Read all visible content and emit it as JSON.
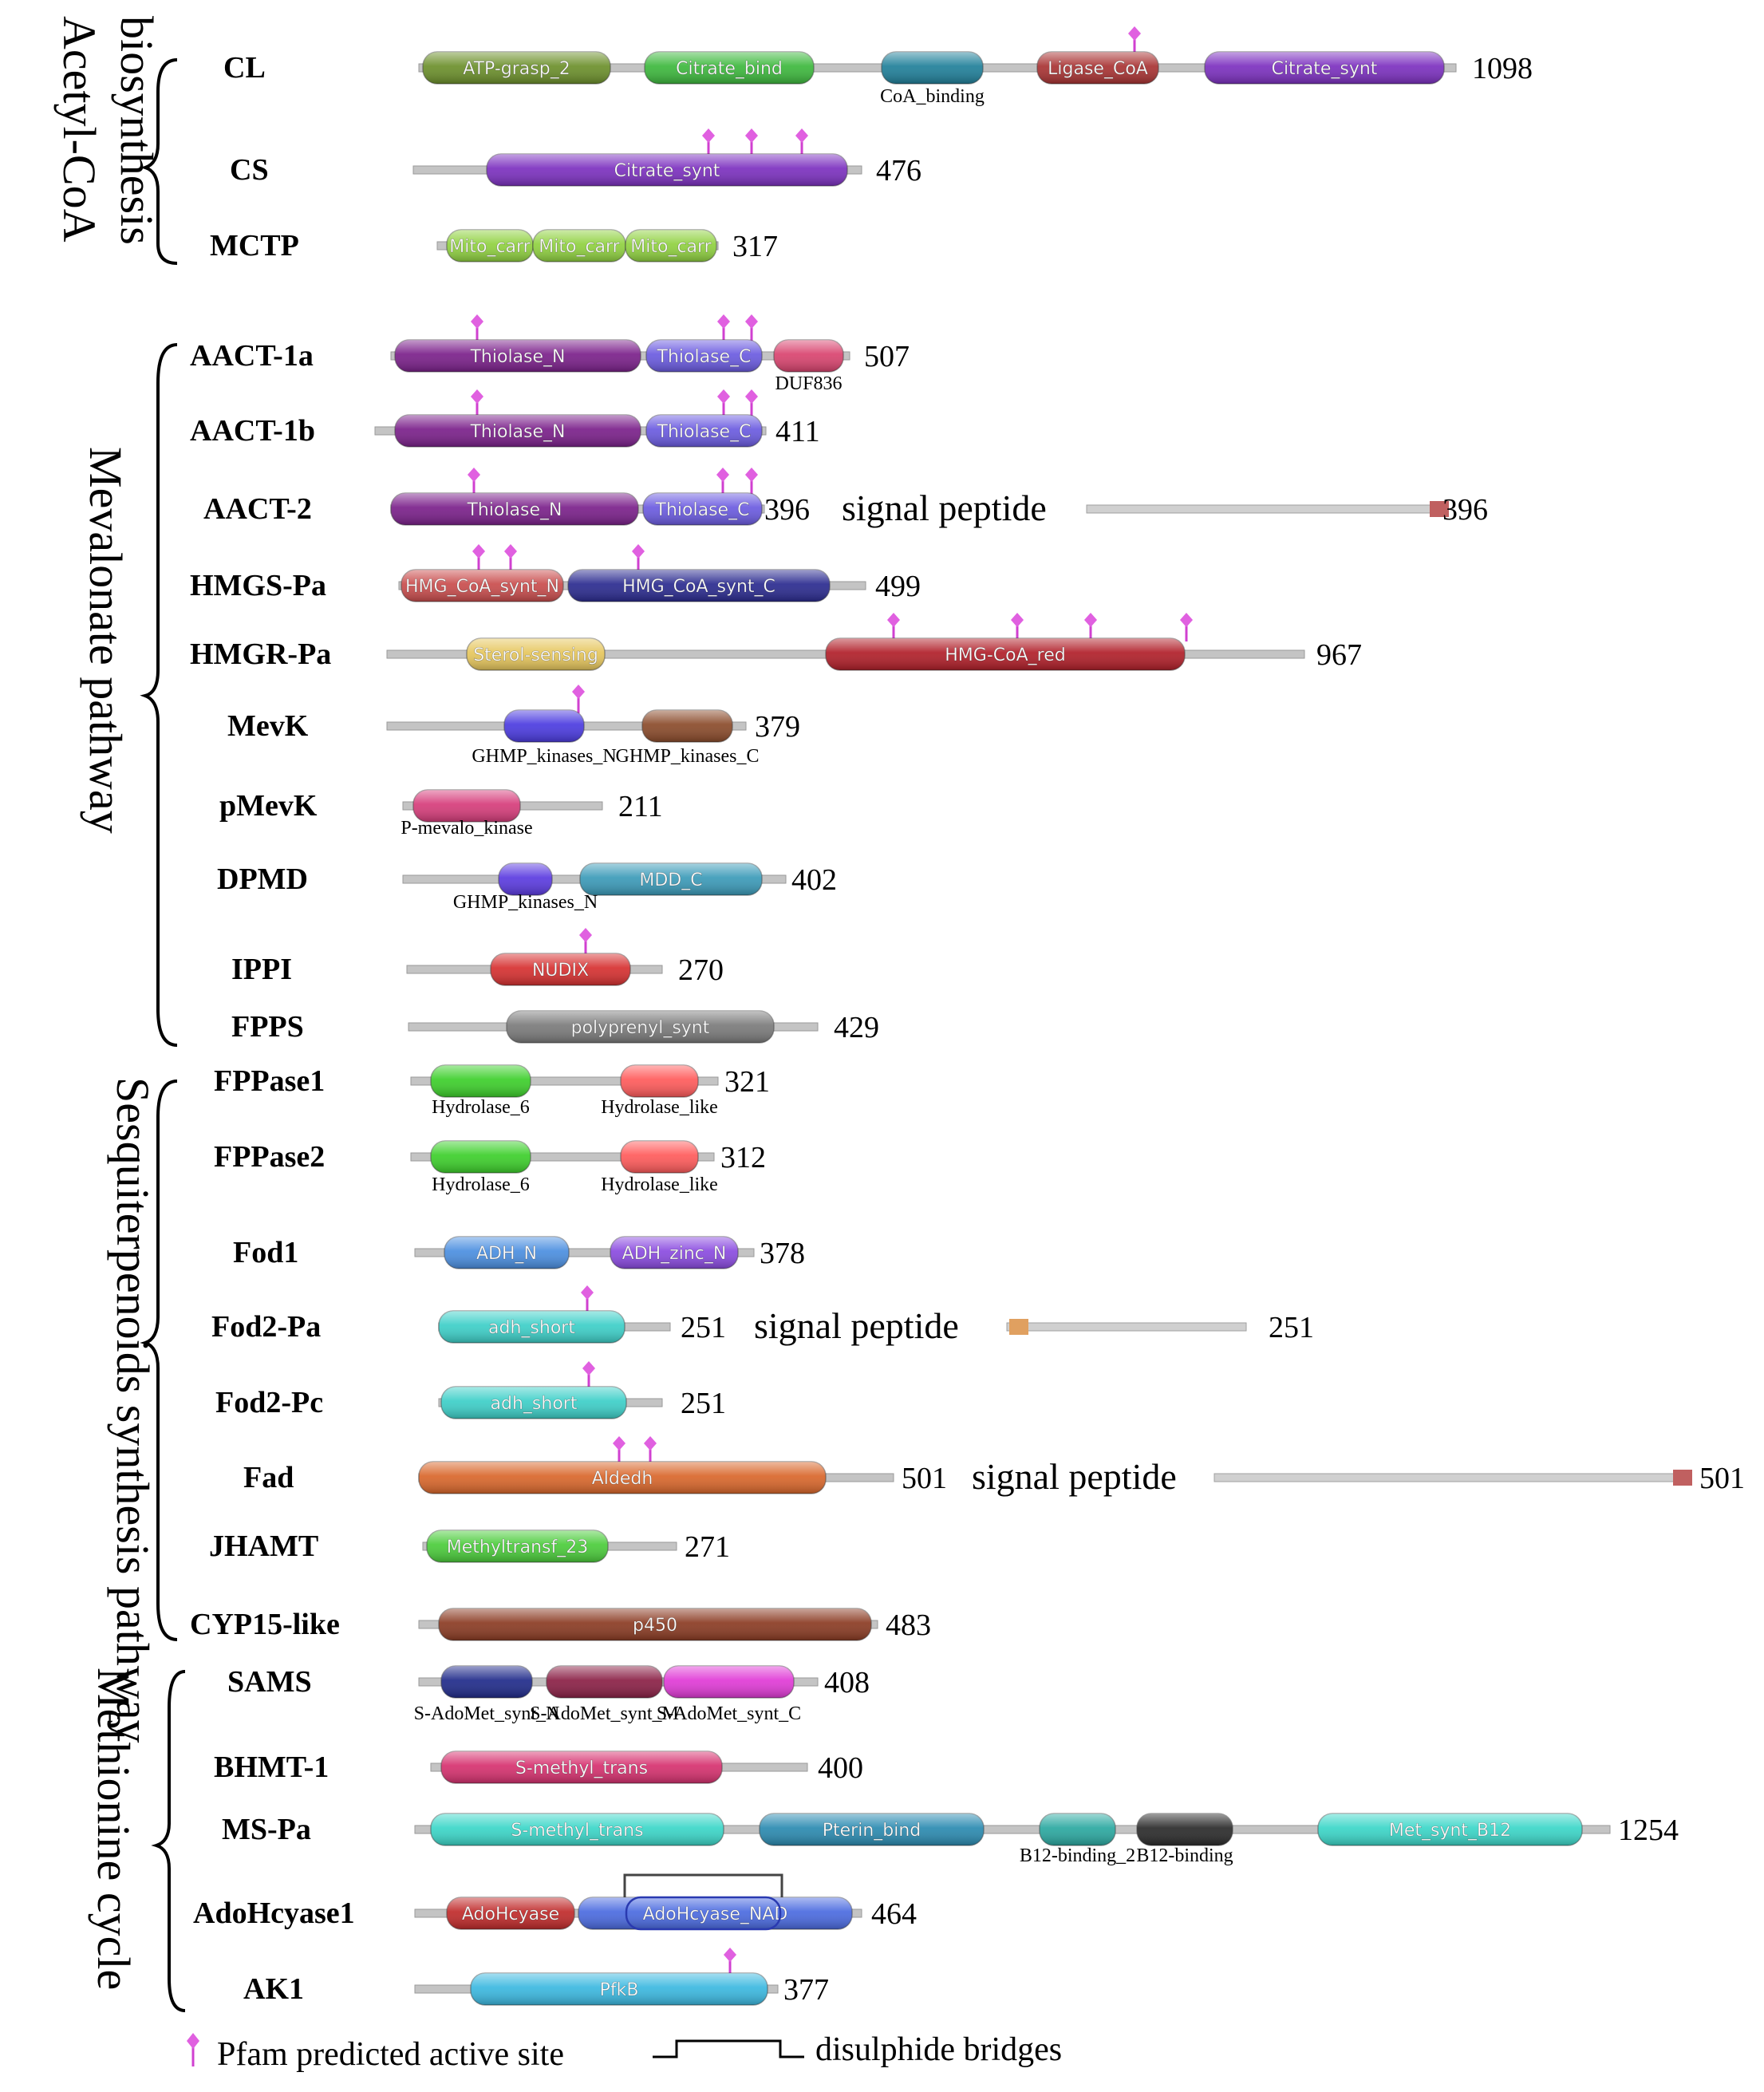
{
  "groups": [
    {
      "label": "Acetyl-CoA biosynthesis"
    },
    {
      "label": "Mevalonate pathway"
    },
    {
      "label": "Sesquiterpenoids synthesis pathway"
    },
    {
      "label": "Methionine cycle"
    }
  ],
  "legend": {
    "active_site": "Pfam predicted active site",
    "disulphide": "disulphide bridges"
  },
  "signal_peptide_label": "signal peptide",
  "proteins": [
    {
      "name": "CL",
      "length": "1098",
      "domains": [
        {
          "name": "ATP-grasp_2",
          "color": "#6b8f2a",
          "label_inside": true
        },
        {
          "name": "Citrate_bind",
          "color": "#3cb83c",
          "label_inside": true
        },
        {
          "name": "CoA_binding",
          "color": "#1f7f99",
          "label_inside": false
        },
        {
          "name": "Ligase_CoA",
          "color": "#a83232",
          "label_inside": true
        },
        {
          "name": "Citrate_synt",
          "color": "#7b2fbf",
          "label_inside": true
        }
      ],
      "active_sites": 1
    },
    {
      "name": "CS",
      "length": "476",
      "domains": [
        {
          "name": "Citrate_synt",
          "color": "#7b2fbf",
          "label_inside": true
        }
      ],
      "active_sites": 3
    },
    {
      "name": "MCTP",
      "length": "317",
      "domains": [
        {
          "name": "Mito_carr",
          "color": "#8fd13f",
          "label_inside": true
        },
        {
          "name": "Mito_carr",
          "color": "#8fd13f",
          "label_inside": true
        },
        {
          "name": "Mito_carr",
          "color": "#8fd13f",
          "label_inside": true
        }
      ],
      "active_sites": 0
    },
    {
      "name": "AACT-1a",
      "length": "507",
      "domains": [
        {
          "name": "Thiolase_N",
          "color": "#7a1f8a",
          "label_inside": true
        },
        {
          "name": "Thiolase_C",
          "color": "#6a5ae0",
          "label_inside": true
        },
        {
          "name": "DUF836",
          "color": "#d9436e",
          "label_inside": false
        }
      ],
      "active_sites": 3
    },
    {
      "name": "AACT-1b",
      "length": "411",
      "domains": [
        {
          "name": "Thiolase_N",
          "color": "#7a1f8a",
          "label_inside": true
        },
        {
          "name": "Thiolase_C",
          "color": "#6a5ae0",
          "label_inside": true
        }
      ],
      "active_sites": 3
    },
    {
      "name": "AACT-2",
      "length": "396",
      "domains": [
        {
          "name": "Thiolase_N",
          "color": "#7a1f8a",
          "label_inside": true
        },
        {
          "name": "Thiolase_C",
          "color": "#6a5ae0",
          "label_inside": true
        }
      ],
      "active_sites": 3,
      "signal_length": "396",
      "signal_color": "#c06060"
    },
    {
      "name": "HMGS-Pa",
      "length": "499",
      "domains": [
        {
          "name": "HMG_CoA_synt_N",
          "color": "#c94c4c",
          "label_inside": true
        },
        {
          "name": "HMG_CoA_synt_C",
          "color": "#2a2a8f",
          "label_inside": true
        }
      ],
      "active_sites": 3
    },
    {
      "name": "HMGR-Pa",
      "length": "967",
      "domains": [
        {
          "name": "Sterol-sensing",
          "color": "#e6c65c",
          "label_inside": true
        },
        {
          "name": "HMG-CoA_red",
          "color": "#b01e28",
          "label_inside": true
        }
      ],
      "active_sites": 4
    },
    {
      "name": "MevK",
      "length": "379",
      "domains": [
        {
          "name": "GHMP_kinases_N",
          "color": "#4a3ae0",
          "label_inside": false
        },
        {
          "name": "GHMP_kinases_C",
          "color": "#8a4a2a",
          "label_inside": false
        }
      ],
      "active_sites": 1
    },
    {
      "name": "pMevK",
      "length": "211",
      "domains": [
        {
          "name": "P-mevalo_kinase",
          "color": "#d63c7a",
          "label_inside": false
        }
      ],
      "active_sites": 0
    },
    {
      "name": "DPMD",
      "length": "402",
      "domains": [
        {
          "name": "GHMP_kinases_N",
          "color": "#5a3ae0",
          "label_inside": false
        },
        {
          "name": "MDD_C",
          "color": "#3a9ab8",
          "label_inside": true
        }
      ],
      "active_sites": 0
    },
    {
      "name": "IPPI",
      "length": "270",
      "domains": [
        {
          "name": "NUDIX",
          "color": "#d62f2f",
          "label_inside": true
        }
      ],
      "active_sites": 1
    },
    {
      "name": "FPPS",
      "length": "429",
      "domains": [
        {
          "name": "polyprenyl_synt",
          "color": "#7a7a7a",
          "label_inside": true
        }
      ],
      "active_sites": 0
    },
    {
      "name": "FPPase1",
      "length": "321",
      "domains": [
        {
          "name": "Hydrolase_6",
          "color": "#3ccf2a",
          "label_inside": false
        },
        {
          "name": "Hydrolase_like",
          "color": "#ff5a5a",
          "label_inside": false
        }
      ],
      "active_sites": 0
    },
    {
      "name": "FPPase2",
      "length": "312",
      "domains": [
        {
          "name": "Hydrolase_6",
          "color": "#3ccf2a",
          "label_inside": false
        },
        {
          "name": "Hydrolase_like",
          "color": "#ff5a5a",
          "label_inside": false
        }
      ],
      "active_sites": 0
    },
    {
      "name": "Fod1",
      "length": "378",
      "domains": [
        {
          "name": "ADH_N",
          "color": "#4a8ee0",
          "label_inside": true
        },
        {
          "name": "ADH_zinc_N",
          "color": "#8a4ae0",
          "label_inside": true
        }
      ],
      "active_sites": 0
    },
    {
      "name": "Fod2-Pa",
      "length": "251",
      "domains": [
        {
          "name": "adh_short",
          "color": "#3ccfc8",
          "label_inside": true
        }
      ],
      "active_sites": 1,
      "signal_length": "251",
      "signal_color": "#e0a060"
    },
    {
      "name": "Fod2-Pc",
      "length": "251",
      "domains": [
        {
          "name": "adh_short",
          "color": "#3ccfc8",
          "label_inside": true
        }
      ],
      "active_sites": 1
    },
    {
      "name": "Fad",
      "length": "501",
      "domains": [
        {
          "name": "Aldedh",
          "color": "#d9662a",
          "label_inside": true
        }
      ],
      "active_sites": 2,
      "signal_length": "501",
      "signal_color": "#c06060"
    },
    {
      "name": "JHAMT",
      "length": "271",
      "domains": [
        {
          "name": "Methyltransf_23",
          "color": "#4acc3a",
          "label_inside": true
        }
      ],
      "active_sites": 0
    },
    {
      "name": "CYP15-like",
      "length": "483",
      "domains": [
        {
          "name": "p450",
          "color": "#8a3a22",
          "label_inside": true
        }
      ],
      "active_sites": 0
    },
    {
      "name": "SAMS",
      "length": "408",
      "domains": [
        {
          "name": "S-AdoMet_synt_N",
          "color": "#1f2a8a",
          "label_inside": false
        },
        {
          "name": "S-AdoMet_synt_M",
          "color": "#8a1f45",
          "label_inside": false
        },
        {
          "name": "S-AdoMet_synt_C",
          "color": "#e03ad6",
          "label_inside": false
        }
      ],
      "active_sites": 0
    },
    {
      "name": "BHMT-1",
      "length": "400",
      "domains": [
        {
          "name": "S-methyl_trans",
          "color": "#d6306e",
          "label_inside": true
        }
      ],
      "active_sites": 0
    },
    {
      "name": "MS-Pa",
      "length": "1254",
      "domains": [
        {
          "name": "S-methyl_trans",
          "color": "#3ad6c8",
          "label_inside": true
        },
        {
          "name": "Pterin_bind",
          "color": "#2a8ab0",
          "label_inside": true
        },
        {
          "name": "B12-binding_2",
          "color": "#2aa8a0",
          "label_inside": false
        },
        {
          "name": "B12-binding",
          "color": "#2a2a2a",
          "label_inside": false
        },
        {
          "name": "Met_synt_B12",
          "color": "#3ad6c8",
          "label_inside": true
        }
      ],
      "active_sites": 0
    },
    {
      "name": "AdoHcyase1",
      "length": "464",
      "domains": [
        {
          "name": "AdoHcyase",
          "color": "#c02a2a",
          "label_inside": true
        },
        {
          "name": "AdoHcyase_NAD",
          "color": "#4a6ae0",
          "label_inside": true
        }
      ],
      "active_sites": 0
    },
    {
      "name": "AK1",
      "length": "377",
      "domains": [
        {
          "name": "PfkB",
          "color": "#3ab8e0",
          "label_inside": true
        }
      ],
      "active_sites": 1
    }
  ]
}
